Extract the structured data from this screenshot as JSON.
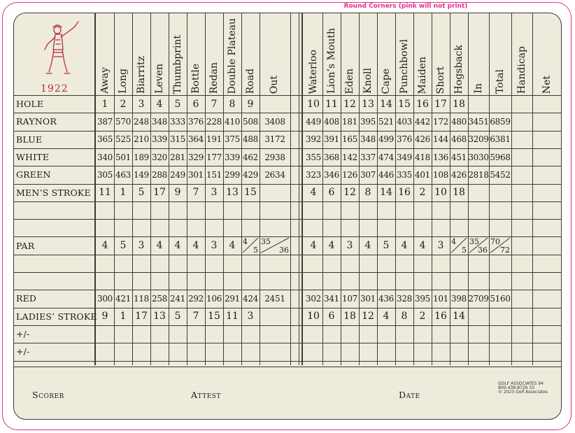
{
  "note": "Round Corners (pink will not print)",
  "year": "1922",
  "holes_front": [
    "Away",
    "Long",
    "Biarritz",
    "Leven",
    "Thumbprint",
    "Bottle",
    "Redan",
    "Double Plateau",
    "Road"
  ],
  "out_label": "Out",
  "holes_back": [
    "Waterloo",
    "Lion’s Mouth",
    "Eden",
    "Knoll",
    "Cape",
    "Punchbowl",
    "Maiden",
    "Short",
    "Hogsback"
  ],
  "summary_cols": [
    "In",
    "Total",
    "Handicap",
    "Net"
  ],
  "rows": [
    {
      "label": "HOLE",
      "front": [
        "1",
        "2",
        "3",
        "4",
        "5",
        "6",
        "7",
        "8",
        "9"
      ],
      "out": "",
      "back": [
        "10",
        "11",
        "12",
        "13",
        "14",
        "15",
        "16",
        "17",
        "18"
      ],
      "in": "",
      "total": ""
    },
    {
      "label": "RAYNOR",
      "front": [
        "387",
        "570",
        "248",
        "348",
        "333",
        "376",
        "228",
        "410",
        "508"
      ],
      "out": "3408",
      "back": [
        "449",
        "408",
        "181",
        "395",
        "521",
        "403",
        "442",
        "172",
        "480"
      ],
      "in": "3451",
      "total": "6859"
    },
    {
      "label": "BLUE",
      "front": [
        "365",
        "525",
        "210",
        "339",
        "315",
        "364",
        "191",
        "375",
        "488"
      ],
      "out": "3172",
      "back": [
        "392",
        "391",
        "165",
        "348",
        "499",
        "376",
        "426",
        "144",
        "468"
      ],
      "in": "3209",
      "total": "6381"
    },
    {
      "label": "WHITE",
      "front": [
        "340",
        "501",
        "189",
        "320",
        "281",
        "329",
        "177",
        "339",
        "462"
      ],
      "out": "2938",
      "back": [
        "355",
        "368",
        "142",
        "337",
        "474",
        "349",
        "418",
        "136",
        "451"
      ],
      "in": "3030",
      "total": "5968"
    },
    {
      "label": "GREEN",
      "front": [
        "305",
        "463",
        "149",
        "288",
        "249",
        "301",
        "151",
        "299",
        "429"
      ],
      "out": "2634",
      "back": [
        "323",
        "346",
        "126",
        "307",
        "446",
        "335",
        "401",
        "108",
        "426"
      ],
      "in": "2818",
      "total": "5452"
    },
    {
      "label": "MEN’S STROKE",
      "front": [
        "11",
        "1",
        "5",
        "17",
        "9",
        "7",
        "3",
        "13",
        "15"
      ],
      "out": "",
      "back": [
        "4",
        "6",
        "12",
        "8",
        "14",
        "16",
        "2",
        "10",
        "18"
      ],
      "in": "",
      "total": ""
    },
    {
      "label": "",
      "front": [
        "",
        "",
        "",
        "",
        "",
        "",
        "",
        "",
        ""
      ],
      "out": "",
      "back": [
        "",
        "",
        "",
        "",
        "",
        "",
        "",
        "",
        ""
      ],
      "in": "",
      "total": ""
    },
    {
      "label": "",
      "front": [
        "",
        "",
        "",
        "",
        "",
        "",
        "",
        "",
        ""
      ],
      "out": "",
      "back": [
        "",
        "",
        "",
        "",
        "",
        "",
        "",
        "",
        ""
      ],
      "in": "",
      "total": ""
    },
    {
      "label": "PAR",
      "front": [
        "4",
        "5",
        "3",
        "4",
        "4",
        "4",
        "3",
        "4",
        ""
      ],
      "out": "",
      "back": [
        "4",
        "4",
        "3",
        "4",
        "5",
        "4",
        "4",
        "3",
        ""
      ],
      "in": "",
      "total": ""
    },
    {
      "label": "",
      "front": [
        "",
        "",
        "",
        "",
        "",
        "",
        "",
        "",
        ""
      ],
      "out": "",
      "back": [
        "",
        "",
        "",
        "",
        "",
        "",
        "",
        "",
        ""
      ],
      "in": "",
      "total": ""
    },
    {
      "label": "",
      "front": [
        "",
        "",
        "",
        "",
        "",
        "",
        "",
        "",
        ""
      ],
      "out": "",
      "back": [
        "",
        "",
        "",
        "",
        "",
        "",
        "",
        "",
        ""
      ],
      "in": "",
      "total": ""
    },
    {
      "label": "RED",
      "front": [
        "300",
        "421",
        "118",
        "258",
        "241",
        "292",
        "106",
        "291",
        "424"
      ],
      "out": "2451",
      "back": [
        "302",
        "341",
        "107",
        "301",
        "436",
        "328",
        "395",
        "101",
        "398"
      ],
      "in": "2709",
      "total": "5160"
    },
    {
      "label": "LADIES’ STROKE",
      "front": [
        "9",
        "1",
        "17",
        "13",
        "5",
        "7",
        "15",
        "11",
        "3"
      ],
      "out": "",
      "back": [
        "10",
        "6",
        "18",
        "12",
        "4",
        "8",
        "2",
        "16",
        "14"
      ],
      "in": "",
      "total": ""
    },
    {
      "label": "+/-",
      "front": [
        "",
        "",
        "",
        "",
        "",
        "",
        "",
        "",
        ""
      ],
      "out": "",
      "back": [
        "",
        "",
        "",
        "",
        "",
        "",
        "",
        "",
        ""
      ],
      "in": "",
      "total": ""
    },
    {
      "label": "+/-",
      "front": [
        "",
        "",
        "",
        "",
        "",
        "",
        "",
        "",
        ""
      ],
      "out": "",
      "back": [
        "",
        "",
        "",
        "",
        "",
        "",
        "",
        "",
        ""
      ],
      "in": "",
      "total": ""
    }
  ],
  "par_splits": {
    "hole9": [
      "4",
      "5"
    ],
    "out": [
      "35",
      "36"
    ],
    "hole18": [
      "4",
      "5"
    ],
    "in": [
      "35",
      "36"
    ],
    "total": [
      "70",
      "72"
    ]
  },
  "footer": {
    "scorer": "Scorer",
    "attest": "Attest",
    "date": "Date"
  },
  "brand": {
    "name": "GOLF ASSOCIATES 94",
    "phone": "800-438-8726 33",
    "copy": "© 2023 Golf Associates"
  },
  "colors": {
    "card": "#efebdc",
    "lines": "#3a3a3a",
    "pink": "#e0308a",
    "logo": "#b0303a"
  }
}
